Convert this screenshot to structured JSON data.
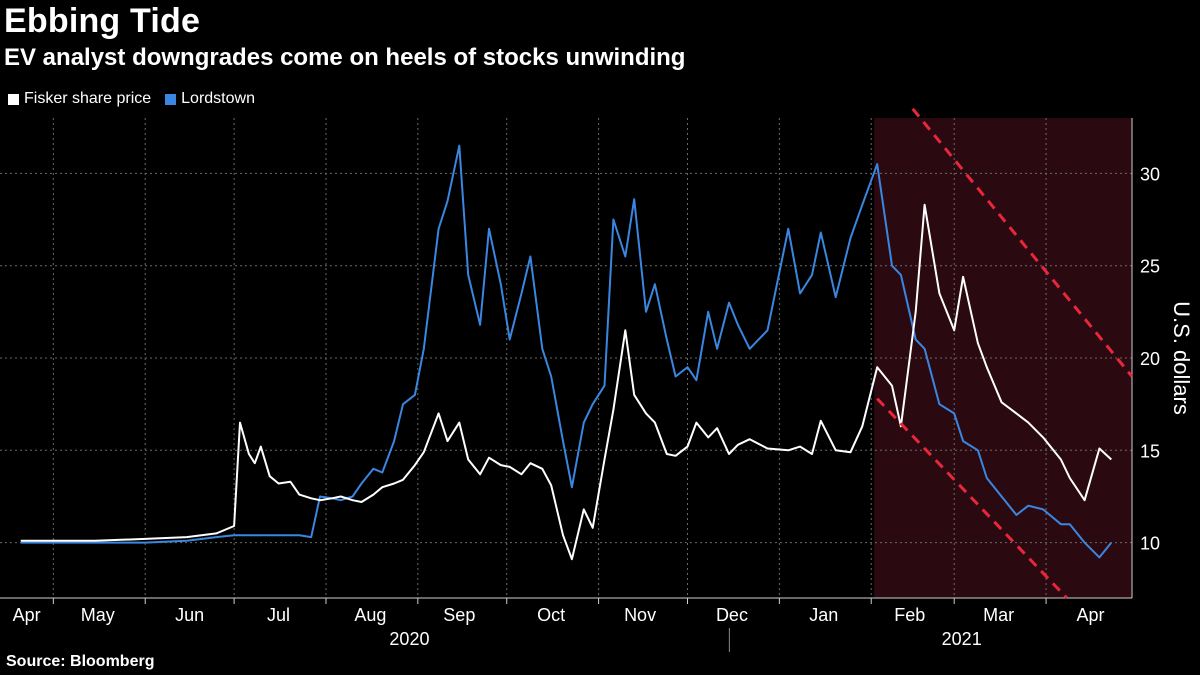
{
  "header": {
    "title": "Ebbing Tide",
    "subtitle": "EV analyst downgrades come on heels of stocks unwinding"
  },
  "source": "Source: Bloomberg",
  "colors": {
    "background": "#000000",
    "fisker": "#ffffff",
    "lordstown": "#3a86e0",
    "highlight_band": "#2a0a10",
    "trend_line": "#e8263c"
  },
  "chart_data": {
    "type": "line",
    "title": "Ebbing Tide",
    "subtitle": "EV analyst downgrades come on heels of stocks unwinding",
    "ylabel": "U.S. dollars",
    "xlabel": "",
    "ylim": [
      7,
      33
    ],
    "yticks": [
      10,
      15,
      20,
      25,
      30
    ],
    "grid": true,
    "legend": "top-left",
    "x_month_labels": [
      "Apr",
      "May",
      "Jun",
      "Jul",
      "Aug",
      "Sep",
      "Oct",
      "Nov",
      "Dec",
      "Jan",
      "Feb",
      "Mar",
      "Apr"
    ],
    "x_year_labels": [
      "2020",
      "2021"
    ],
    "x": [
      "2020-04-20",
      "2020-05-01",
      "2020-05-15",
      "2020-06-01",
      "2020-06-15",
      "2020-06-25",
      "2020-07-01",
      "2020-07-03",
      "2020-07-06",
      "2020-07-08",
      "2020-07-10",
      "2020-07-13",
      "2020-07-16",
      "2020-07-20",
      "2020-07-23",
      "2020-07-27",
      "2020-07-30",
      "2020-08-03",
      "2020-08-06",
      "2020-08-10",
      "2020-08-13",
      "2020-08-17",
      "2020-08-20",
      "2020-08-24",
      "2020-08-27",
      "2020-08-31",
      "2020-09-03",
      "2020-09-08",
      "2020-09-11",
      "2020-09-15",
      "2020-09-18",
      "2020-09-22",
      "2020-09-25",
      "2020-09-29",
      "2020-10-02",
      "2020-10-06",
      "2020-10-09",
      "2020-10-13",
      "2020-10-16",
      "2020-10-20",
      "2020-10-23",
      "2020-10-27",
      "2020-10-30",
      "2020-11-03",
      "2020-11-06",
      "2020-11-10",
      "2020-11-13",
      "2020-11-17",
      "2020-11-20",
      "2020-11-24",
      "2020-11-27",
      "2020-12-01",
      "2020-12-04",
      "2020-12-08",
      "2020-12-11",
      "2020-12-15",
      "2020-12-18",
      "2020-12-22",
      "2020-12-28",
      "2021-01-04",
      "2021-01-08",
      "2021-01-12",
      "2021-01-15",
      "2021-01-20",
      "2021-01-25",
      "2021-01-29",
      "2021-02-03",
      "2021-02-08",
      "2021-02-11",
      "2021-02-16",
      "2021-02-19",
      "2021-02-24",
      "2021-03-01",
      "2021-03-04",
      "2021-03-09",
      "2021-03-12",
      "2021-03-17",
      "2021-03-22",
      "2021-03-26",
      "2021-03-31",
      "2021-04-06",
      "2021-04-09",
      "2021-04-14",
      "2021-04-19",
      "2021-04-23"
    ],
    "series": [
      {
        "name": "Fisker share price",
        "color": "#ffffff",
        "values": [
          10.1,
          10.1,
          10.1,
          10.2,
          10.3,
          10.5,
          10.9,
          16.5,
          14.8,
          14.3,
          15.2,
          13.6,
          13.2,
          13.3,
          12.6,
          12.4,
          12.3,
          12.4,
          12.5,
          12.3,
          12.2,
          12.6,
          13.0,
          13.2,
          13.4,
          14.2,
          14.9,
          17.0,
          15.5,
          16.5,
          14.5,
          13.7,
          14.6,
          14.2,
          14.1,
          13.7,
          14.3,
          14.0,
          13.1,
          10.4,
          9.1,
          11.8,
          10.8,
          14.5,
          17.2,
          21.5,
          18.0,
          17.0,
          16.5,
          14.8,
          14.7,
          15.2,
          16.5,
          15.7,
          16.2,
          14.8,
          15.3,
          15.6,
          15.1,
          15.0,
          15.2,
          14.8,
          16.6,
          15.0,
          14.9,
          16.3,
          19.5,
          18.5,
          16.3,
          22.5,
          28.3,
          23.5,
          21.5,
          24.4,
          20.8,
          19.5,
          17.6,
          17.0,
          16.5,
          15.7,
          14.5,
          13.5,
          12.3,
          15.1,
          14.5
        ]
      },
      {
        "name": "Lordstown",
        "color": "#3a86e0",
        "values": [
          10.0,
          10.0,
          10.0,
          10.0,
          10.1,
          10.3,
          10.4,
          10.4,
          10.4,
          10.4,
          10.4,
          10.4,
          10.4,
          10.4,
          10.4,
          10.3,
          12.5,
          12.4,
          12.3,
          12.5,
          13.2,
          14.0,
          13.8,
          15.5,
          17.5,
          18.0,
          20.5,
          27.0,
          28.5,
          31.5,
          24.5,
          21.8,
          27.0,
          24.0,
          21.0,
          23.5,
          25.5,
          20.5,
          19.0,
          15.5,
          13.0,
          16.5,
          17.5,
          18.5,
          27.5,
          25.5,
          28.6,
          22.5,
          24.0,
          21.0,
          19.0,
          19.5,
          18.8,
          22.5,
          20.5,
          23.0,
          21.8,
          20.5,
          21.5,
          27.0,
          23.5,
          24.5,
          26.8,
          23.3,
          26.5,
          28.3,
          30.5,
          25.0,
          24.5,
          21.0,
          20.5,
          17.5,
          17.0,
          15.5,
          15.0,
          13.5,
          12.5,
          11.5,
          12.0,
          11.8,
          11.0,
          11.0,
          10.0,
          9.2,
          10.0
        ]
      }
    ],
    "highlight_region": {
      "x_start": "2021-02-01",
      "x_end": "2021-04-30",
      "upper_line": [
        [
          "2021-02-15",
          33.5
        ],
        [
          "2021-04-30",
          19.0
        ]
      ],
      "lower_line": [
        [
          "2021-02-03",
          17.8
        ],
        [
          "2021-04-08",
          7.0
        ]
      ]
    }
  }
}
